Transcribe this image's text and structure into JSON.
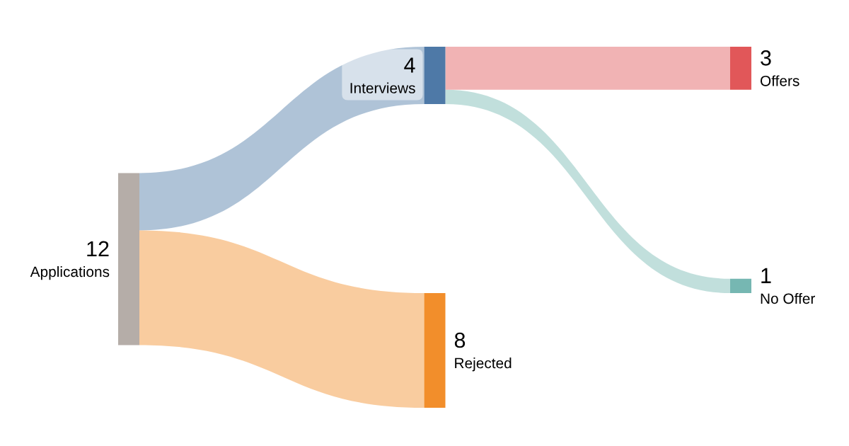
{
  "chart_data": {
    "type": "other",
    "categories": [
      "Applications",
      "Interviews",
      "Offers",
      "No Offer",
      "Rejected"
    ],
    "colors": [
      "#b5ada8",
      "#4e79a7",
      "#e15759",
      "#76b7b2",
      "#f28e2b"
    ],
    "series": [
      {
        "values": [
          12,
          null,
          null,
          null,
          null
        ]
      },
      {
        "values": [
          null,
          4,
          null,
          null,
          8
        ]
      },
      {
        "values": [
          null,
          null,
          3,
          1,
          null
        ]
      }
    ],
    "data_labels": true
  }
}
